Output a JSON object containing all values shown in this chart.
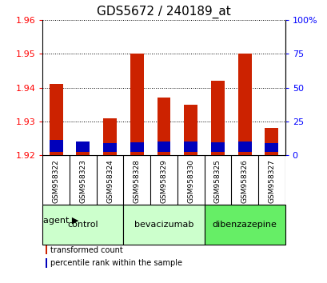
{
  "title": "GDS5672 / 240189_at",
  "samples": [
    "GSM958322",
    "GSM958323",
    "GSM958324",
    "GSM958328",
    "GSM958329",
    "GSM958330",
    "GSM958325",
    "GSM958326",
    "GSM958327"
  ],
  "red_values": [
    1.941,
    1.923,
    1.931,
    1.95,
    1.937,
    1.935,
    1.942,
    1.95,
    1.928
  ],
  "blue_heights": [
    0.0035,
    0.003,
    0.0025,
    0.0028,
    0.003,
    0.0032,
    0.0028,
    0.003,
    0.0025
  ],
  "ymin": 1.92,
  "ymax": 1.96,
  "y_ticks": [
    1.92,
    1.93,
    1.94,
    1.95,
    1.96
  ],
  "right_ticks": [
    0,
    25,
    50,
    75,
    100
  ],
  "right_tick_labels": [
    "0",
    "25",
    "50",
    "75",
    "100%"
  ],
  "groups": [
    {
      "label": "control",
      "indices": [
        0,
        1,
        2
      ],
      "color": "#ccffcc"
    },
    {
      "label": "bevacizumab",
      "indices": [
        3,
        4,
        5
      ],
      "color": "#ccffcc"
    },
    {
      "label": "dibenzazepine",
      "indices": [
        6,
        7,
        8
      ],
      "color": "#66ee66"
    }
  ],
  "legend_items": [
    {
      "label": "transformed count",
      "color": "#cc2200"
    },
    {
      "label": "percentile rank within the sample",
      "color": "#0000bb"
    }
  ],
  "bar_width": 0.5,
  "bar_color_red": "#cc2200",
  "bar_color_blue": "#0000bb",
  "bg_plot": "#ffffff",
  "bg_sample_row": "#cccccc",
  "agent_label": "agent",
  "title_fontsize": 11,
  "tick_fontsize": 8,
  "label_fontsize": 8
}
